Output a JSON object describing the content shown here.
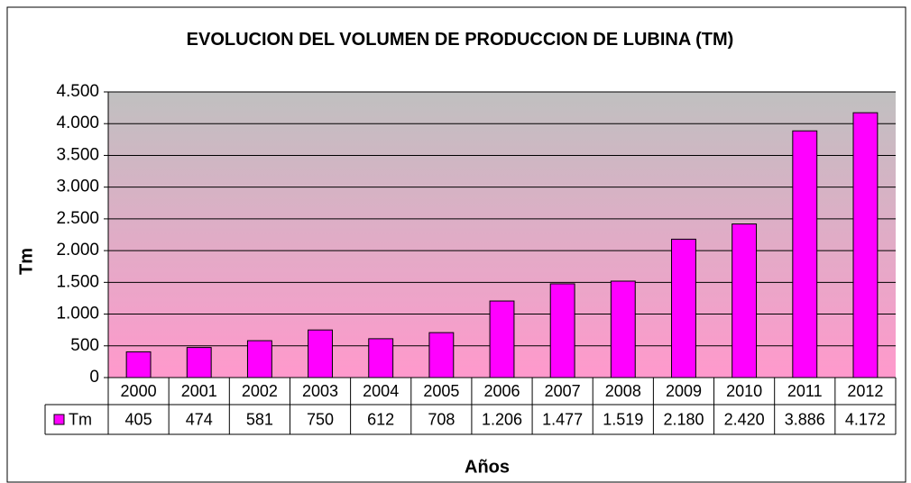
{
  "chart_data": {
    "type": "bar",
    "title": "EVOLUCION DEL VOLUMEN DE PRODUCCION DE LUBINA (TM)",
    "x_label": "Años",
    "y_label": "Tm",
    "categories": [
      "2000",
      "2001",
      "2002",
      "2003",
      "2004",
      "2005",
      "2006",
      "2007",
      "2008",
      "2009",
      "2010",
      "2011",
      "2012"
    ],
    "series": [
      {
        "name": "Tm",
        "color": "#ff00ff",
        "values": [
          405,
          474,
          581,
          750,
          612,
          708,
          1206,
          1477,
          1519,
          2180,
          2420,
          3886,
          4172
        ],
        "value_labels": [
          "405",
          "474",
          "581",
          "750",
          "612",
          "708",
          "1.206",
          "1.477",
          "1.519",
          "2.180",
          "2.420",
          "3.886",
          "4.172"
        ]
      }
    ],
    "ylim": [
      0,
      4500
    ],
    "yticks": [
      0,
      500,
      {
        "value": 1000,
        "label": "1.000"
      },
      {
        "value": 1500,
        "label": "1.500"
      },
      {
        "value": 2000,
        "label": "2.000"
      },
      {
        "value": 2500,
        "label": "2.500"
      },
      {
        "value": 3000,
        "label": "3.000"
      },
      {
        "value": 3500,
        "label": "3.500"
      },
      {
        "value": 4000,
        "label": "4.000"
      },
      {
        "value": 4500,
        "label": "4.500"
      }
    ],
    "grid": true,
    "data_table": true
  }
}
